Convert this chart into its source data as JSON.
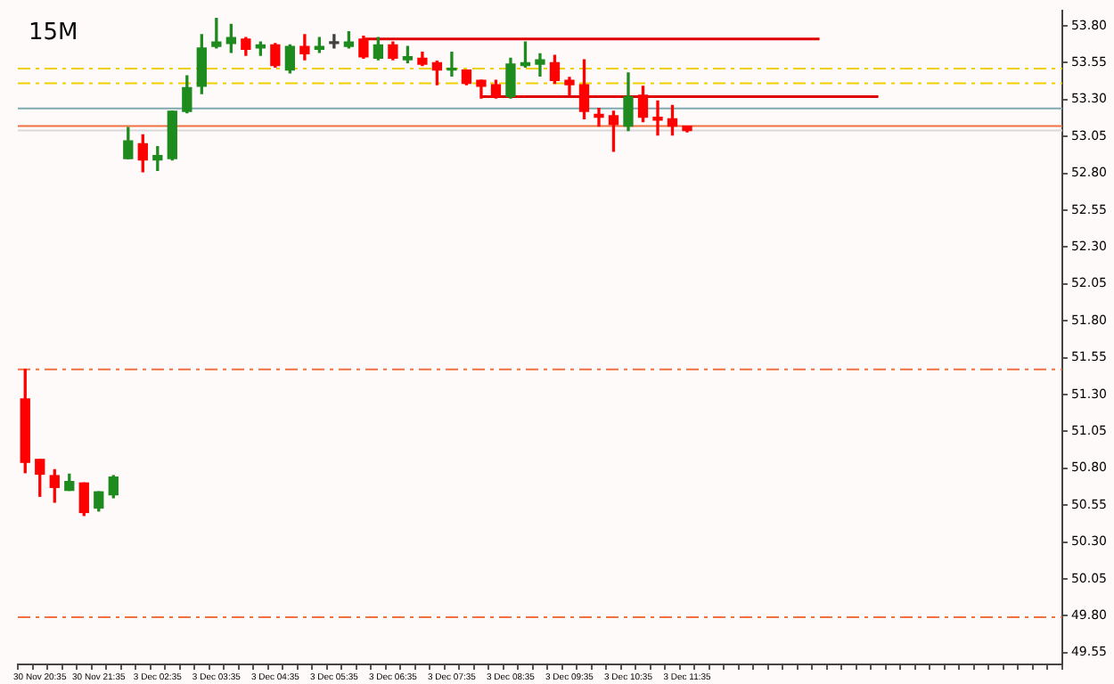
{
  "chart_data": {
    "type": "candlestick",
    "title": "15M",
    "categories": [
      null,
      "30 Nov 20:35",
      null,
      null,
      null,
      "30 Nov 21:35",
      null,
      null,
      null,
      "3 Dec 02:35",
      null,
      null,
      null,
      "3 Dec 03:35",
      null,
      null,
      null,
      "3 Dec 04:35",
      null,
      null,
      null,
      "3 Dec 05:35",
      null,
      null,
      null,
      "3 Dec 06:35",
      null,
      null,
      null,
      "3 Dec 07:35",
      null,
      null,
      null,
      "3 Dec 08:35",
      null,
      null,
      null,
      "3 Dec 09:35",
      null,
      null,
      null,
      "3 Dec 10:35",
      null,
      null,
      null,
      "3 Dec 11:35",
      null,
      null,
      null,
      null,
      null,
      null,
      null,
      null,
      null,
      null,
      null,
      null,
      null,
      null,
      null,
      null,
      null,
      null,
      null,
      null,
      null,
      null,
      null,
      null,
      null
    ],
    "ohlc": [
      [
        51.27,
        51.47,
        50.77,
        50.84
      ],
      [
        50.86,
        50.86,
        50.61,
        50.76
      ],
      [
        50.75,
        50.79,
        50.57,
        50.67
      ],
      [
        50.65,
        50.76,
        50.65,
        50.71
      ],
      [
        50.7,
        50.7,
        50.48,
        50.5
      ],
      [
        50.53,
        50.64,
        50.51,
        50.64
      ],
      [
        50.62,
        50.75,
        50.6,
        50.74
      ],
      [
        52.9,
        53.11,
        52.9,
        53.02
      ],
      [
        53.0,
        53.06,
        52.81,
        52.89
      ],
      [
        52.89,
        52.98,
        52.82,
        52.92
      ],
      [
        52.9,
        53.22,
        52.89,
        53.22
      ],
      [
        53.22,
        53.46,
        53.21,
        53.38
      ],
      [
        53.39,
        53.74,
        53.34,
        53.65
      ],
      [
        53.66,
        53.85,
        53.65,
        53.69
      ],
      [
        53.68,
        53.81,
        53.62,
        53.72
      ],
      [
        53.71,
        53.72,
        53.6,
        53.64
      ],
      [
        53.65,
        53.69,
        53.6,
        53.67
      ],
      [
        53.67,
        53.68,
        53.52,
        53.53
      ],
      [
        53.5,
        53.67,
        53.48,
        53.66
      ],
      [
        53.66,
        53.74,
        53.57,
        53.61
      ],
      [
        53.64,
        53.72,
        53.62,
        53.66
      ],
      [
        53.68,
        53.74,
        53.65,
        53.68
      ],
      [
        53.66,
        53.76,
        53.65,
        53.69
      ],
      [
        53.71,
        53.73,
        53.58,
        53.59
      ],
      [
        53.58,
        53.72,
        53.57,
        53.67
      ],
      [
        53.67,
        53.69,
        53.57,
        53.58
      ],
      [
        53.57,
        53.66,
        53.55,
        53.59
      ],
      [
        53.58,
        53.62,
        53.53,
        53.54
      ],
      [
        53.55,
        53.56,
        53.4,
        53.5
      ],
      [
        53.5,
        53.62,
        53.46,
        53.51
      ],
      [
        53.5,
        53.5,
        53.4,
        53.41
      ],
      [
        53.43,
        53.43,
        53.31,
        53.39
      ],
      [
        53.4,
        53.43,
        53.31,
        53.32
      ],
      [
        53.32,
        53.58,
        53.31,
        53.54
      ],
      [
        53.53,
        53.69,
        53.52,
        53.55
      ],
      [
        53.54,
        53.61,
        53.46,
        53.57
      ],
      [
        53.55,
        53.6,
        53.41,
        53.43
      ],
      [
        53.43,
        53.45,
        53.33,
        53.4
      ],
      [
        53.4,
        53.57,
        53.17,
        53.22
      ],
      [
        53.2,
        53.24,
        53.12,
        53.18
      ],
      [
        53.19,
        53.22,
        52.95,
        53.13
      ],
      [
        53.12,
        53.48,
        53.09,
        53.32
      ],
      [
        53.33,
        53.39,
        53.15,
        53.18
      ],
      [
        53.18,
        53.29,
        53.06,
        53.16
      ],
      [
        53.17,
        53.26,
        53.06,
        53.12
      ],
      [
        53.12,
        53.12,
        53.08,
        53.09
      ],
      null,
      null,
      null,
      null,
      null,
      null,
      null,
      null,
      null,
      null,
      null,
      null,
      null,
      null,
      null,
      null,
      null,
      null,
      null,
      null,
      null,
      null,
      null,
      null,
      null
    ],
    "colors": [
      "#ff0000",
      "#ff0000",
      "#ff0000",
      "#1e8b1e",
      "#ff0000",
      "#1e8b1e",
      "#1e8b1e",
      "#1e8b1e",
      "#ff0000",
      "#1e8b1e",
      "#1e8b1e",
      "#1e8b1e",
      "#1e8b1e",
      "#1e8b1e",
      "#1e8b1e",
      "#ff0000",
      "#1e8b1e",
      "#ff0000",
      "#1e8b1e",
      "#ff0000",
      "#1e8b1e",
      "#404040",
      "#1e8b1e",
      "#ff0000",
      "#1e8b1e",
      "#ff0000",
      "#1e8b1e",
      "#ff0000",
      "#ff0000",
      "#1e8b1e",
      "#ff0000",
      "#ff0000",
      "#ff0000",
      "#1e8b1e",
      "#1e8b1e",
      "#1e8b1e",
      "#ff0000",
      "#ff0000",
      "#ff0000",
      "#ff0000",
      "#ff0000",
      "#1e8b1e",
      "#ff0000",
      "#ff0000",
      "#ff0000",
      "#ff0000",
      null,
      null,
      null,
      null,
      null,
      null,
      null,
      null,
      null,
      null,
      null,
      null,
      null,
      null,
      null,
      null,
      null,
      null,
      null,
      null,
      null,
      null,
      null,
      null,
      null
    ],
    "series": [
      {
        "type": "line",
        "color": "#e00000",
        "values": [
          null,
          null,
          null,
          null,
          null,
          null,
          null,
          null,
          null,
          null,
          null,
          null,
          null,
          null,
          null,
          null,
          null,
          null,
          null,
          null,
          null,
          null,
          null,
          53.71,
          null,
          null,
          null,
          null,
          null,
          null,
          null,
          null,
          null,
          null,
          null,
          null,
          null,
          null,
          null,
          null,
          null,
          null,
          null,
          null,
          null,
          null,
          null,
          null,
          null,
          null,
          null,
          null,
          null,
          null,
          53.71,
          null,
          null,
          null,
          null,
          null,
          null,
          null,
          null,
          null,
          null,
          null,
          null,
          null,
          null,
          null,
          null
        ]
      },
      {
        "type": "line",
        "color": "#e00000",
        "values": [
          null,
          null,
          null,
          null,
          null,
          null,
          null,
          null,
          null,
          null,
          null,
          null,
          null,
          null,
          null,
          null,
          null,
          null,
          null,
          null,
          null,
          null,
          null,
          null,
          null,
          null,
          null,
          null,
          null,
          null,
          null,
          53.32,
          null,
          null,
          null,
          null,
          null,
          null,
          null,
          null,
          null,
          null,
          null,
          null,
          null,
          null,
          null,
          null,
          null,
          null,
          null,
          null,
          null,
          null,
          null,
          null,
          null,
          null,
          53.32,
          null,
          null,
          null,
          null,
          null,
          null,
          null,
          null,
          null,
          null,
          null,
          null
        ]
      }
    ],
    "ref_lines": [
      {
        "axis": "y",
        "value": 53.51,
        "color": "#f0d000",
        "line_style": "dashed"
      },
      {
        "axis": "y",
        "value": 53.41,
        "color": "#f0d000",
        "line_style": "dashed"
      },
      {
        "axis": "y",
        "value": 53.24,
        "color": "#7fa9b0",
        "line_style": "solid"
      },
      {
        "axis": "y",
        "value": 53.12,
        "color": "#f07040",
        "line_style": "solid"
      },
      {
        "axis": "y",
        "value": 53.09,
        "color": "#d8d8d8",
        "line_style": "solid"
      },
      {
        "axis": "y",
        "value": 51.47,
        "color": "#f07040",
        "line_style": "dashed"
      },
      {
        "axis": "y",
        "value": 49.79,
        "color": "#f07040",
        "line_style": "dashed"
      }
    ],
    "ylim": [
      49.47,
      53.9
    ],
    "yticks": [
      {
        "value": 53.8,
        "label": "53.80"
      },
      {
        "value": 53.55,
        "label": "53.55"
      },
      {
        "value": 53.3,
        "label": "53.30"
      },
      {
        "value": 53.05,
        "label": "53.05"
      },
      {
        "value": 52.8,
        "label": "52.80"
      },
      {
        "value": 52.55,
        "label": "52.55"
      },
      {
        "value": 52.3,
        "label": "52.30"
      },
      {
        "value": 52.05,
        "label": "52.05"
      },
      {
        "value": 51.8,
        "label": "51.80"
      },
      {
        "value": 51.55,
        "label": "51.55"
      },
      {
        "value": 51.3,
        "label": "51.30"
      },
      {
        "value": 51.05,
        "label": "51.05"
      },
      {
        "value": 50.8,
        "label": "50.80"
      },
      {
        "value": 50.55,
        "label": "50.55"
      },
      {
        "value": 50.3,
        "label": "50.30"
      },
      {
        "value": 50.05,
        "label": "50.05"
      },
      {
        "value": 49.8,
        "label": "49.80"
      },
      {
        "value": 49.55,
        "label": "49.55"
      }
    ],
    "grid": false,
    "legend": false
  }
}
